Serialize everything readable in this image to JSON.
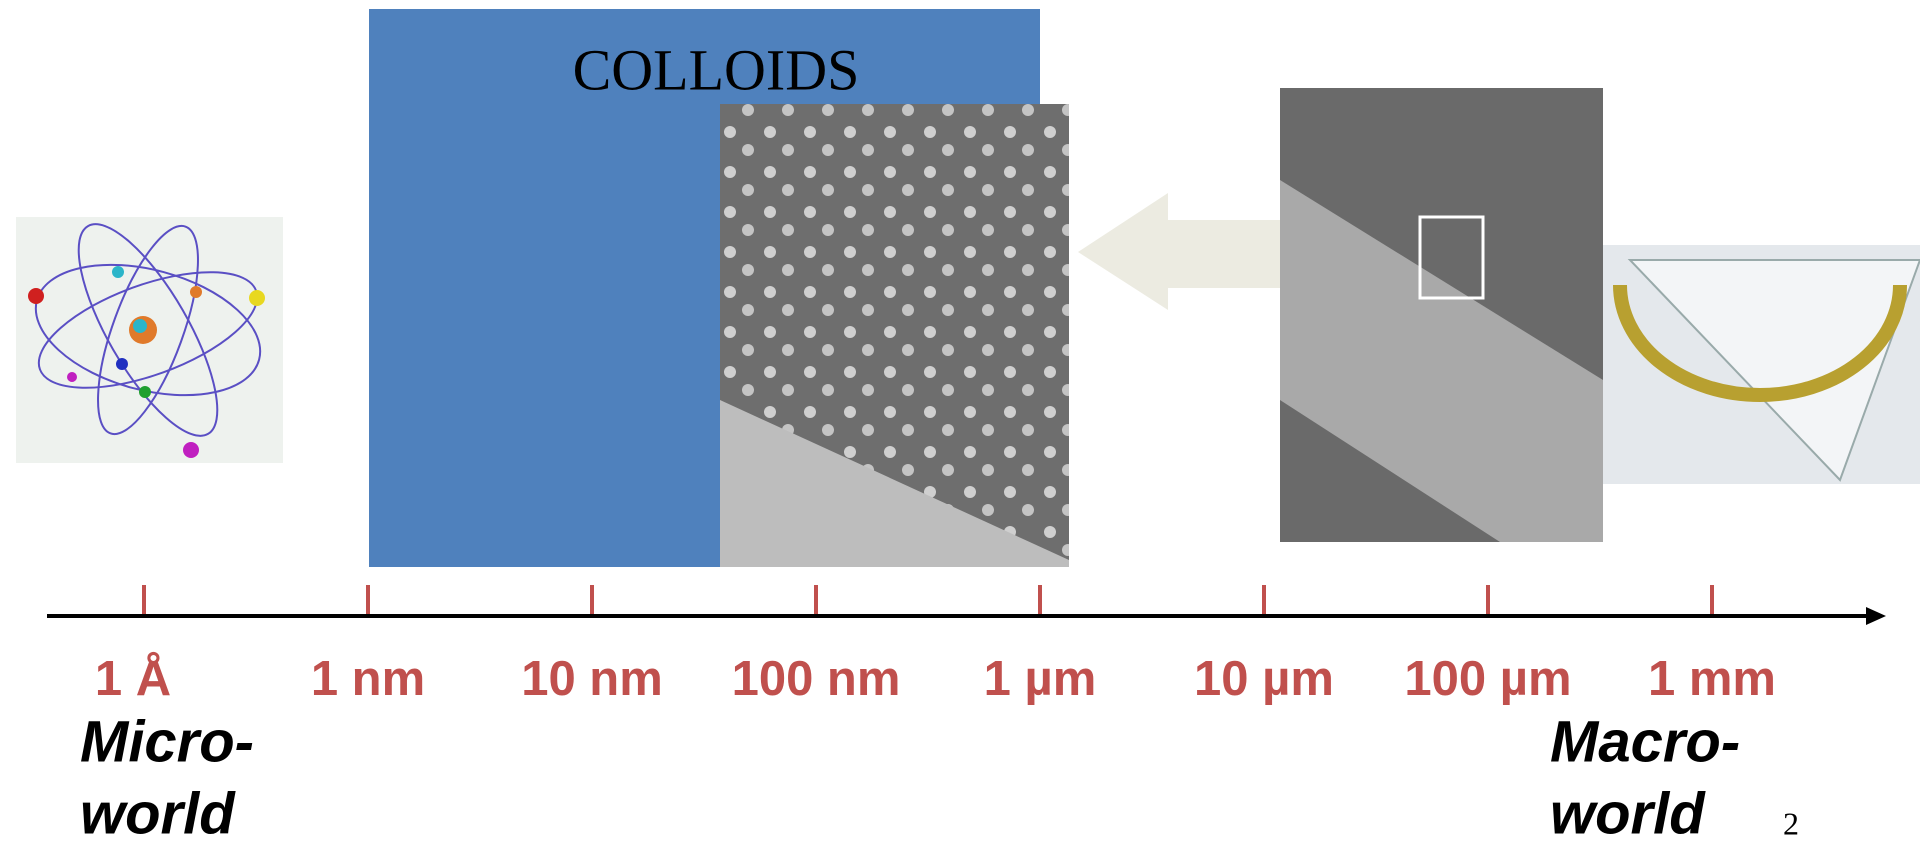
{
  "title": "COLLOIDS",
  "scale": {
    "labels": [
      "1 Å",
      "1 nm",
      "10 nm",
      "100 nm",
      "1 µm",
      "10 µm",
      "100 µm",
      "1 mm"
    ]
  },
  "micro_label": [
    "Micro-",
    "world"
  ],
  "macro_label": [
    "Macro-",
    "world"
  ],
  "page_number": "2"
}
